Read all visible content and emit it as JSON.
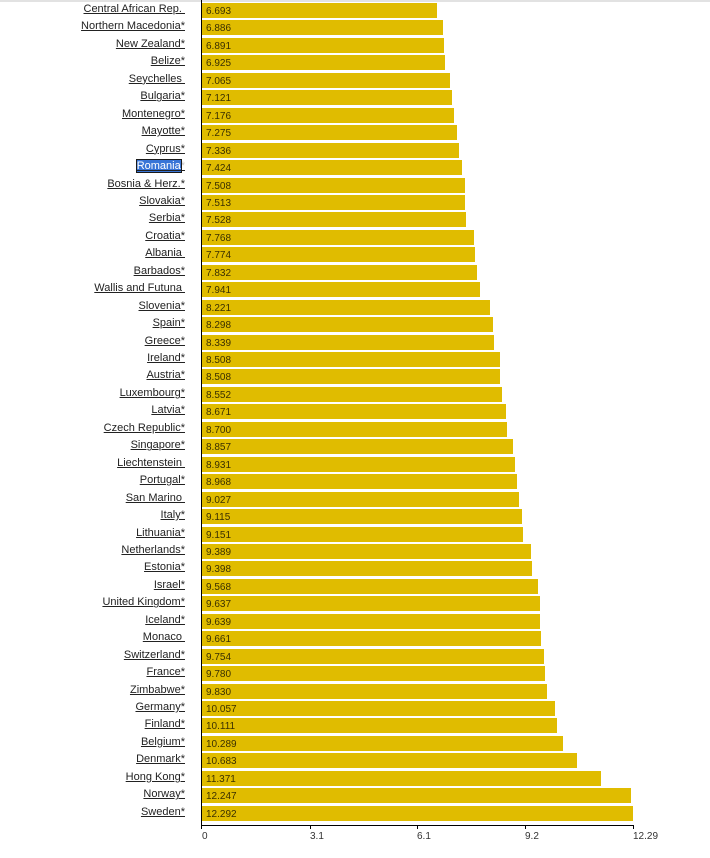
{
  "chart_data": {
    "type": "bar",
    "orientation": "horizontal",
    "title": "",
    "xlabel": "",
    "ylabel": "",
    "xlim": [
      0,
      12.29
    ],
    "x_ticks": [
      "0",
      "3.1",
      "6.1",
      "9.2",
      "12.29"
    ],
    "x_tick_values": [
      0,
      3.07,
      6.14,
      9.22,
      12.29
    ],
    "grid": false,
    "bar_color": "#e0bc00",
    "selected_category": "Romania",
    "categories": [
      "Central African Rep. ",
      "Northern Macedonia*",
      "New Zealand*",
      "Belize*",
      "Seychelles ",
      "Bulgaria*",
      "Montenegro*",
      "Mayotte*",
      "Cyprus*",
      "Romania*",
      "Bosnia & Herz.*",
      "Slovakia*",
      "Serbia*",
      "Croatia*",
      "Albania ",
      "Barbados*",
      "Wallis and Futuna ",
      "Slovenia*",
      "Spain*",
      "Greece*",
      "Ireland*",
      "Austria*",
      "Luxembourg*",
      "Latvia*",
      "Czech Republic*",
      "Singapore*",
      "Liechtenstein ",
      "Portugal*",
      "San Marino ",
      "Italy*",
      "Lithuania*",
      "Netherlands*",
      "Estonia*",
      "Israel*",
      "United Kingdom*",
      "Iceland*",
      "Monaco ",
      "Switzerland*",
      "France*",
      "Zimbabwe*",
      "Germany*",
      "Finland*",
      "Belgium*",
      "Denmark*",
      "Hong Kong*",
      "Norway*",
      "Sweden*"
    ],
    "values": [
      6.693,
      6.886,
      6.891,
      6.925,
      7.065,
      7.121,
      7.176,
      7.275,
      7.336,
      7.424,
      7.508,
      7.513,
      7.528,
      7.768,
      7.774,
      7.832,
      7.941,
      8.221,
      8.298,
      8.339,
      8.508,
      8.508,
      8.552,
      8.671,
      8.7,
      8.857,
      8.931,
      8.968,
      9.027,
      9.115,
      9.151,
      9.389,
      9.398,
      9.568,
      9.637,
      9.639,
      9.661,
      9.754,
      9.78,
      9.83,
      10.057,
      10.111,
      10.289,
      10.683,
      11.371,
      12.247,
      12.292
    ],
    "value_labels": [
      "6.693",
      "6.886",
      "6.891",
      "6.925",
      "7.065",
      "7.121",
      "7.176",
      "7.275",
      "7.336",
      "7.424",
      "7.508",
      "7.513",
      "7.528",
      "7.768",
      "7.774",
      "7.832",
      "7.941",
      "8.221",
      "8.298",
      "8.339",
      "8.508",
      "8.508",
      "8.552",
      "8.671",
      "8.700",
      "8.857",
      "8.931",
      "8.968",
      "9.027",
      "9.115",
      "9.151",
      "9.389",
      "9.398",
      "9.568",
      "9.637",
      "9.639",
      "9.661",
      "9.754",
      "9.780",
      "9.830",
      "10.057",
      "10.111",
      "10.289",
      "10.683",
      "11.371",
      "12.247",
      "12.292"
    ]
  }
}
